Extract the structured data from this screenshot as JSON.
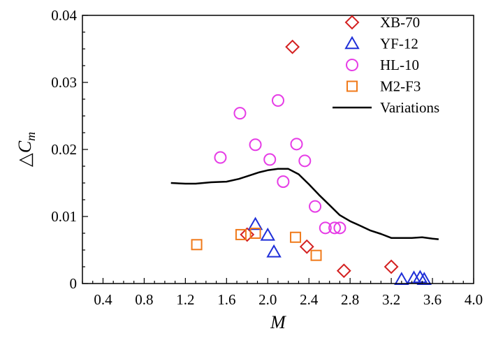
{
  "chart_data": {
    "type": "scatter",
    "xlabel": "M",
    "ylabel_symbol": "△",
    "ylabel_main": "C",
    "ylabel_sub": "m",
    "xlim": [
      0.2,
      4.0
    ],
    "ylim": [
      0,
      0.04
    ],
    "x_ticks": [
      "0.4",
      "0.8",
      "1.2",
      "1.6",
      "2.0",
      "2.4",
      "2.8",
      "3.2",
      "3.6",
      "4.0"
    ],
    "x_tick_values": [
      0.4,
      0.8,
      1.2,
      1.6,
      2.0,
      2.4,
      2.8,
      3.2,
      3.6,
      4.0
    ],
    "y_ticks": [
      "0",
      "0.01",
      "0.02",
      "0.03",
      "0.04"
    ],
    "y_tick_values": [
      0,
      0.01,
      0.02,
      0.03,
      0.04
    ],
    "legend_position": "top-right",
    "grid": false,
    "series": [
      {
        "name": "XB-70",
        "marker": "diamond",
        "color": "#d42020",
        "points": [
          [
            1.8,
            0.0073
          ],
          [
            2.24,
            0.0353
          ],
          [
            2.38,
            0.0055
          ],
          [
            2.74,
            0.0019
          ],
          [
            3.2,
            0.0025
          ]
        ]
      },
      {
        "name": "YF-12",
        "marker": "triangle",
        "color": "#1f2fd8",
        "points": [
          [
            1.88,
            0.0088
          ],
          [
            2.0,
            0.0072
          ],
          [
            2.06,
            0.0047
          ],
          [
            3.3,
            0.0006
          ],
          [
            3.42,
            0.0008
          ],
          [
            3.48,
            0.0009
          ],
          [
            3.52,
            0.0006
          ]
        ]
      },
      {
        "name": "HL-10",
        "marker": "circle",
        "color": "#e63ce6",
        "points": [
          [
            1.54,
            0.0188
          ],
          [
            1.73,
            0.0254
          ],
          [
            1.88,
            0.0207
          ],
          [
            2.02,
            0.0185
          ],
          [
            2.1,
            0.0273
          ],
          [
            2.15,
            0.0152
          ],
          [
            2.28,
            0.0208
          ],
          [
            2.36,
            0.0183
          ],
          [
            2.46,
            0.0115
          ],
          [
            2.56,
            0.0083
          ],
          [
            2.65,
            0.0083
          ],
          [
            2.7,
            0.0083
          ]
        ]
      },
      {
        "name": "M2-F3",
        "marker": "square",
        "color": "#f07a1a",
        "points": [
          [
            1.31,
            0.0058
          ],
          [
            1.74,
            0.0073
          ],
          [
            1.88,
            0.0075
          ],
          [
            2.27,
            0.0069
          ],
          [
            2.47,
            0.0042
          ]
        ]
      },
      {
        "name": "Variations",
        "type": "line",
        "color": "#000000",
        "points": [
          [
            1.06,
            0.015
          ],
          [
            1.2,
            0.0149
          ],
          [
            1.3,
            0.0149
          ],
          [
            1.45,
            0.0151
          ],
          [
            1.6,
            0.0152
          ],
          [
            1.72,
            0.0156
          ],
          [
            1.82,
            0.0161
          ],
          [
            1.92,
            0.0166
          ],
          [
            2.0,
            0.0169
          ],
          [
            2.1,
            0.0171
          ],
          [
            2.2,
            0.0171
          ],
          [
            2.3,
            0.0163
          ],
          [
            2.4,
            0.0148
          ],
          [
            2.5,
            0.0132
          ],
          [
            2.6,
            0.0117
          ],
          [
            2.7,
            0.0102
          ],
          [
            2.8,
            0.0093
          ],
          [
            2.9,
            0.0086
          ],
          [
            3.0,
            0.0079
          ],
          [
            3.1,
            0.0074
          ],
          [
            3.2,
            0.0068
          ],
          [
            3.3,
            0.0068
          ],
          [
            3.4,
            0.0068
          ],
          [
            3.5,
            0.0069
          ],
          [
            3.6,
            0.0067
          ],
          [
            3.66,
            0.0066
          ]
        ]
      }
    ]
  }
}
